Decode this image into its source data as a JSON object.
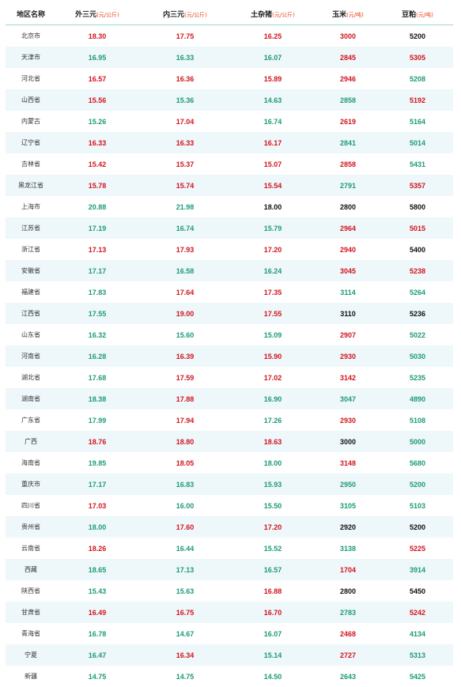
{
  "header": {
    "columns": [
      {
        "label": "地区名称",
        "unit": ""
      },
      {
        "label": "外三元",
        "unit": "(元/公斤)"
      },
      {
        "label": "内三元",
        "unit": "(元/公斤)"
      },
      {
        "label": "土杂猪",
        "unit": "(元/公斤)"
      },
      {
        "label": "玉米",
        "unit": "(元/吨)"
      },
      {
        "label": "豆粕",
        "unit": "(元/吨)"
      }
    ]
  },
  "colors": {
    "up": "#d2141e",
    "down": "#1d9a78",
    "flat": "#111111"
  },
  "rows": [
    {
      "region": "北京市",
      "cells": [
        {
          "v": "18.30",
          "t": "up"
        },
        {
          "v": "17.75",
          "t": "up"
        },
        {
          "v": "16.25",
          "t": "up"
        },
        {
          "v": "3000",
          "t": "up"
        },
        {
          "v": "5200",
          "t": "flat"
        }
      ]
    },
    {
      "region": "天津市",
      "cells": [
        {
          "v": "16.95",
          "t": "down"
        },
        {
          "v": "16.33",
          "t": "down"
        },
        {
          "v": "16.07",
          "t": "down"
        },
        {
          "v": "2845",
          "t": "up"
        },
        {
          "v": "5305",
          "t": "up"
        }
      ]
    },
    {
      "region": "河北省",
      "cells": [
        {
          "v": "16.57",
          "t": "up"
        },
        {
          "v": "16.36",
          "t": "up"
        },
        {
          "v": "15.89",
          "t": "up"
        },
        {
          "v": "2946",
          "t": "up"
        },
        {
          "v": "5208",
          "t": "down"
        }
      ]
    },
    {
      "region": "山西省",
      "cells": [
        {
          "v": "15.56",
          "t": "up"
        },
        {
          "v": "15.36",
          "t": "down"
        },
        {
          "v": "14.63",
          "t": "down"
        },
        {
          "v": "2858",
          "t": "down"
        },
        {
          "v": "5192",
          "t": "up"
        }
      ]
    },
    {
      "region": "内蒙古",
      "cells": [
        {
          "v": "15.26",
          "t": "down"
        },
        {
          "v": "17.04",
          "t": "up"
        },
        {
          "v": "16.74",
          "t": "down"
        },
        {
          "v": "2619",
          "t": "up"
        },
        {
          "v": "5164",
          "t": "down"
        }
      ]
    },
    {
      "region": "辽宁省",
      "cells": [
        {
          "v": "16.33",
          "t": "up"
        },
        {
          "v": "16.33",
          "t": "up"
        },
        {
          "v": "16.17",
          "t": "up"
        },
        {
          "v": "2841",
          "t": "down"
        },
        {
          "v": "5014",
          "t": "down"
        }
      ]
    },
    {
      "region": "吉林省",
      "cells": [
        {
          "v": "15.42",
          "t": "up"
        },
        {
          "v": "15.37",
          "t": "up"
        },
        {
          "v": "15.07",
          "t": "up"
        },
        {
          "v": "2858",
          "t": "up"
        },
        {
          "v": "5431",
          "t": "down"
        }
      ]
    },
    {
      "region": "黑龙江省",
      "cells": [
        {
          "v": "15.78",
          "t": "up"
        },
        {
          "v": "15.74",
          "t": "up"
        },
        {
          "v": "15.54",
          "t": "up"
        },
        {
          "v": "2791",
          "t": "down"
        },
        {
          "v": "5357",
          "t": "up"
        }
      ]
    },
    {
      "region": "上海市",
      "cells": [
        {
          "v": "20.88",
          "t": "down"
        },
        {
          "v": "21.98",
          "t": "down"
        },
        {
          "v": "18.00",
          "t": "flat"
        },
        {
          "v": "2800",
          "t": "flat"
        },
        {
          "v": "5800",
          "t": "flat"
        }
      ]
    },
    {
      "region": "江苏省",
      "cells": [
        {
          "v": "17.19",
          "t": "down"
        },
        {
          "v": "16.74",
          "t": "down"
        },
        {
          "v": "15.79",
          "t": "down"
        },
        {
          "v": "2964",
          "t": "up"
        },
        {
          "v": "5015",
          "t": "up"
        }
      ]
    },
    {
      "region": "浙江省",
      "cells": [
        {
          "v": "17.13",
          "t": "up"
        },
        {
          "v": "17.93",
          "t": "up"
        },
        {
          "v": "17.20",
          "t": "up"
        },
        {
          "v": "2940",
          "t": "up"
        },
        {
          "v": "5400",
          "t": "flat"
        }
      ]
    },
    {
      "region": "安徽省",
      "cells": [
        {
          "v": "17.17",
          "t": "down"
        },
        {
          "v": "16.58",
          "t": "down"
        },
        {
          "v": "16.24",
          "t": "down"
        },
        {
          "v": "3045",
          "t": "up"
        },
        {
          "v": "5238",
          "t": "up"
        }
      ]
    },
    {
      "region": "福建省",
      "cells": [
        {
          "v": "17.83",
          "t": "down"
        },
        {
          "v": "17.64",
          "t": "up"
        },
        {
          "v": "17.35",
          "t": "up"
        },
        {
          "v": "3114",
          "t": "down"
        },
        {
          "v": "5264",
          "t": "down"
        }
      ]
    },
    {
      "region": "江西省",
      "cells": [
        {
          "v": "17.55",
          "t": "down"
        },
        {
          "v": "19.00",
          "t": "up"
        },
        {
          "v": "17.55",
          "t": "up"
        },
        {
          "v": "3110",
          "t": "flat"
        },
        {
          "v": "5236",
          "t": "flat"
        }
      ]
    },
    {
      "region": "山东省",
      "cells": [
        {
          "v": "16.32",
          "t": "down"
        },
        {
          "v": "15.60",
          "t": "down"
        },
        {
          "v": "15.09",
          "t": "down"
        },
        {
          "v": "2907",
          "t": "up"
        },
        {
          "v": "5022",
          "t": "down"
        }
      ]
    },
    {
      "region": "河南省",
      "cells": [
        {
          "v": "16.28",
          "t": "down"
        },
        {
          "v": "16.39",
          "t": "up"
        },
        {
          "v": "15.90",
          "t": "up"
        },
        {
          "v": "2930",
          "t": "up"
        },
        {
          "v": "5030",
          "t": "down"
        }
      ]
    },
    {
      "region": "湖北省",
      "cells": [
        {
          "v": "17.68",
          "t": "down"
        },
        {
          "v": "17.59",
          "t": "up"
        },
        {
          "v": "17.02",
          "t": "up"
        },
        {
          "v": "3142",
          "t": "up"
        },
        {
          "v": "5235",
          "t": "down"
        }
      ]
    },
    {
      "region": "湖南省",
      "cells": [
        {
          "v": "18.38",
          "t": "down"
        },
        {
          "v": "17.88",
          "t": "up"
        },
        {
          "v": "16.90",
          "t": "down"
        },
        {
          "v": "3047",
          "t": "down"
        },
        {
          "v": "4890",
          "t": "down"
        }
      ]
    },
    {
      "region": "广东省",
      "cells": [
        {
          "v": "17.99",
          "t": "down"
        },
        {
          "v": "17.94",
          "t": "up"
        },
        {
          "v": "17.26",
          "t": "down"
        },
        {
          "v": "2930",
          "t": "up"
        },
        {
          "v": "5108",
          "t": "down"
        }
      ]
    },
    {
      "region": "广西",
      "cells": [
        {
          "v": "18.76",
          "t": "up"
        },
        {
          "v": "18.80",
          "t": "up"
        },
        {
          "v": "18.63",
          "t": "up"
        },
        {
          "v": "3000",
          "t": "flat"
        },
        {
          "v": "5000",
          "t": "down"
        }
      ]
    },
    {
      "region": "海南省",
      "cells": [
        {
          "v": "19.85",
          "t": "down"
        },
        {
          "v": "18.05",
          "t": "up"
        },
        {
          "v": "18.00",
          "t": "down"
        },
        {
          "v": "3148",
          "t": "up"
        },
        {
          "v": "5680",
          "t": "down"
        }
      ]
    },
    {
      "region": "重庆市",
      "cells": [
        {
          "v": "17.17",
          "t": "down"
        },
        {
          "v": "16.83",
          "t": "down"
        },
        {
          "v": "15.93",
          "t": "down"
        },
        {
          "v": "2950",
          "t": "down"
        },
        {
          "v": "5200",
          "t": "down"
        }
      ]
    },
    {
      "region": "四川省",
      "cells": [
        {
          "v": "17.03",
          "t": "up"
        },
        {
          "v": "16.00",
          "t": "down"
        },
        {
          "v": "15.50",
          "t": "down"
        },
        {
          "v": "3105",
          "t": "down"
        },
        {
          "v": "5103",
          "t": "down"
        }
      ]
    },
    {
      "region": "贵州省",
      "cells": [
        {
          "v": "18.00",
          "t": "down"
        },
        {
          "v": "17.60",
          "t": "up"
        },
        {
          "v": "17.20",
          "t": "up"
        },
        {
          "v": "2920",
          "t": "flat"
        },
        {
          "v": "5200",
          "t": "flat"
        }
      ]
    },
    {
      "region": "云南省",
      "cells": [
        {
          "v": "18.26",
          "t": "up"
        },
        {
          "v": "16.44",
          "t": "down"
        },
        {
          "v": "15.52",
          "t": "down"
        },
        {
          "v": "3138",
          "t": "down"
        },
        {
          "v": "5225",
          "t": "up"
        }
      ]
    },
    {
      "region": "西藏",
      "cells": [
        {
          "v": "18.65",
          "t": "down"
        },
        {
          "v": "17.13",
          "t": "down"
        },
        {
          "v": "16.57",
          "t": "down"
        },
        {
          "v": "1704",
          "t": "up"
        },
        {
          "v": "3914",
          "t": "down"
        }
      ]
    },
    {
      "region": "陕西省",
      "cells": [
        {
          "v": "15.43",
          "t": "down"
        },
        {
          "v": "15.63",
          "t": "down"
        },
        {
          "v": "16.88",
          "t": "up"
        },
        {
          "v": "2800",
          "t": "flat"
        },
        {
          "v": "5450",
          "t": "flat"
        }
      ]
    },
    {
      "region": "甘肃省",
      "cells": [
        {
          "v": "16.49",
          "t": "up"
        },
        {
          "v": "16.75",
          "t": "up"
        },
        {
          "v": "16.70",
          "t": "up"
        },
        {
          "v": "2783",
          "t": "down"
        },
        {
          "v": "5242",
          "t": "up"
        }
      ]
    },
    {
      "region": "青海省",
      "cells": [
        {
          "v": "16.78",
          "t": "down"
        },
        {
          "v": "14.67",
          "t": "down"
        },
        {
          "v": "16.07",
          "t": "down"
        },
        {
          "v": "2468",
          "t": "up"
        },
        {
          "v": "4134",
          "t": "down"
        }
      ]
    },
    {
      "region": "宁夏",
      "cells": [
        {
          "v": "16.47",
          "t": "down"
        },
        {
          "v": "16.34",
          "t": "up"
        },
        {
          "v": "15.14",
          "t": "down"
        },
        {
          "v": "2727",
          "t": "up"
        },
        {
          "v": "5313",
          "t": "down"
        }
      ]
    },
    {
      "region": "新疆",
      "cells": [
        {
          "v": "14.75",
          "t": "down"
        },
        {
          "v": "14.75",
          "t": "down"
        },
        {
          "v": "14.50",
          "t": "down"
        },
        {
          "v": "2643",
          "t": "down"
        },
        {
          "v": "5425",
          "t": "down"
        }
      ]
    }
  ]
}
